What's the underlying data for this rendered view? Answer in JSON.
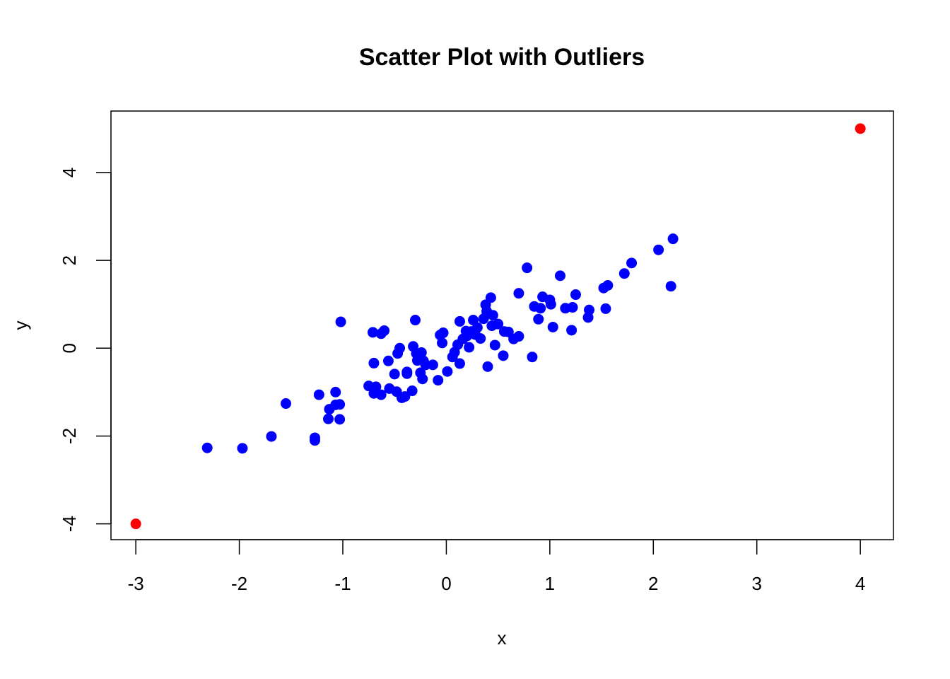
{
  "chart_data": {
    "type": "scatter",
    "title": "Scatter Plot with Outliers",
    "xlabel": "x",
    "ylabel": "y",
    "xlim": [
      -3.24,
      4.32
    ],
    "ylim": [
      -4.36,
      5.4
    ],
    "xticks": [
      -3,
      -2,
      -1,
      0,
      1,
      2,
      3,
      4
    ],
    "yticks": [
      -4,
      -2,
      0,
      2,
      4
    ],
    "xtick_labels": [
      "-3",
      "-2",
      "-1",
      "0",
      "1",
      "2",
      "3",
      "4"
    ],
    "ytick_labels": [
      "-4",
      "-2",
      "0",
      "2",
      "4"
    ],
    "grid": false,
    "legend": "none",
    "series": [
      {
        "color": "#0000ff",
        "x": [
          -2.31,
          -1.97,
          -1.69,
          -1.55,
          -1.27,
          -1.27,
          -1.23,
          -1.14,
          -1.13,
          -1.07,
          -1.07,
          -1.03,
          -1.03,
          -1.02,
          -0.75,
          -0.71,
          -0.7,
          -0.7,
          -0.68,
          -0.63,
          -0.63,
          -0.6,
          -0.55,
          -0.56,
          -0.5,
          -0.48,
          -0.47,
          -0.45,
          -0.43,
          -0.4,
          -0.38,
          -0.38,
          -0.33,
          -0.32,
          -0.3,
          -0.29,
          -0.28,
          -0.25,
          -0.24,
          -0.23,
          -0.22,
          -0.2,
          -0.13,
          -0.08,
          -0.06,
          -0.04,
          -0.03,
          0.01,
          0.06,
          0.08,
          0.11,
          0.13,
          0.13,
          0.16,
          0.19,
          0.2,
          0.22,
          0.24,
          0.26,
          0.28,
          0.3,
          0.33,
          0.36,
          0.38,
          0.39,
          0.4,
          0.43,
          0.44,
          0.45,
          0.47,
          0.5,
          0.55,
          0.56,
          0.6,
          0.65,
          0.7,
          0.7,
          0.78,
          0.83,
          0.85,
          0.89,
          0.91,
          0.93,
          1.0,
          1.01,
          1.03,
          1.1,
          1.15,
          1.21,
          1.22,
          1.25,
          1.37,
          1.38,
          1.52,
          1.54,
          1.56,
          1.72,
          1.79,
          2.05,
          2.17,
          2.19
        ],
        "y": [
          -2.27,
          -2.28,
          -2.01,
          -1.26,
          -2.04,
          -2.1,
          -1.06,
          -1.61,
          -1.39,
          -1.0,
          -1.29,
          -1.28,
          -1.62,
          0.6,
          -0.86,
          0.36,
          -0.34,
          -1.03,
          -0.88,
          -1.06,
          0.33,
          0.4,
          -0.92,
          -0.29,
          -0.59,
          -0.99,
          -0.12,
          0.0,
          -1.13,
          -1.1,
          -0.54,
          -0.58,
          -0.97,
          0.04,
          0.64,
          -0.12,
          -0.28,
          -0.56,
          -0.1,
          -0.7,
          -0.29,
          -0.38,
          -0.38,
          -0.73,
          0.3,
          0.12,
          0.35,
          -0.53,
          -0.2,
          -0.09,
          0.08,
          -0.35,
          0.61,
          0.21,
          0.39,
          0.28,
          0.02,
          0.38,
          0.64,
          0.31,
          0.47,
          0.22,
          0.67,
          0.99,
          0.84,
          -0.42,
          1.15,
          0.51,
          0.75,
          0.07,
          0.55,
          -0.17,
          0.38,
          0.37,
          0.21,
          1.25,
          0.27,
          1.83,
          -0.2,
          0.95,
          0.66,
          0.91,
          1.17,
          1.1,
          1.0,
          0.48,
          1.65,
          0.91,
          0.41,
          0.93,
          1.22,
          0.7,
          0.87,
          1.37,
          0.9,
          1.43,
          1.7,
          1.94,
          2.24,
          1.41,
          2.49
        ]
      },
      {
        "color": "#ff0000",
        "x": [
          -3,
          4
        ],
        "y": [
          -4,
          5
        ]
      }
    ]
  }
}
